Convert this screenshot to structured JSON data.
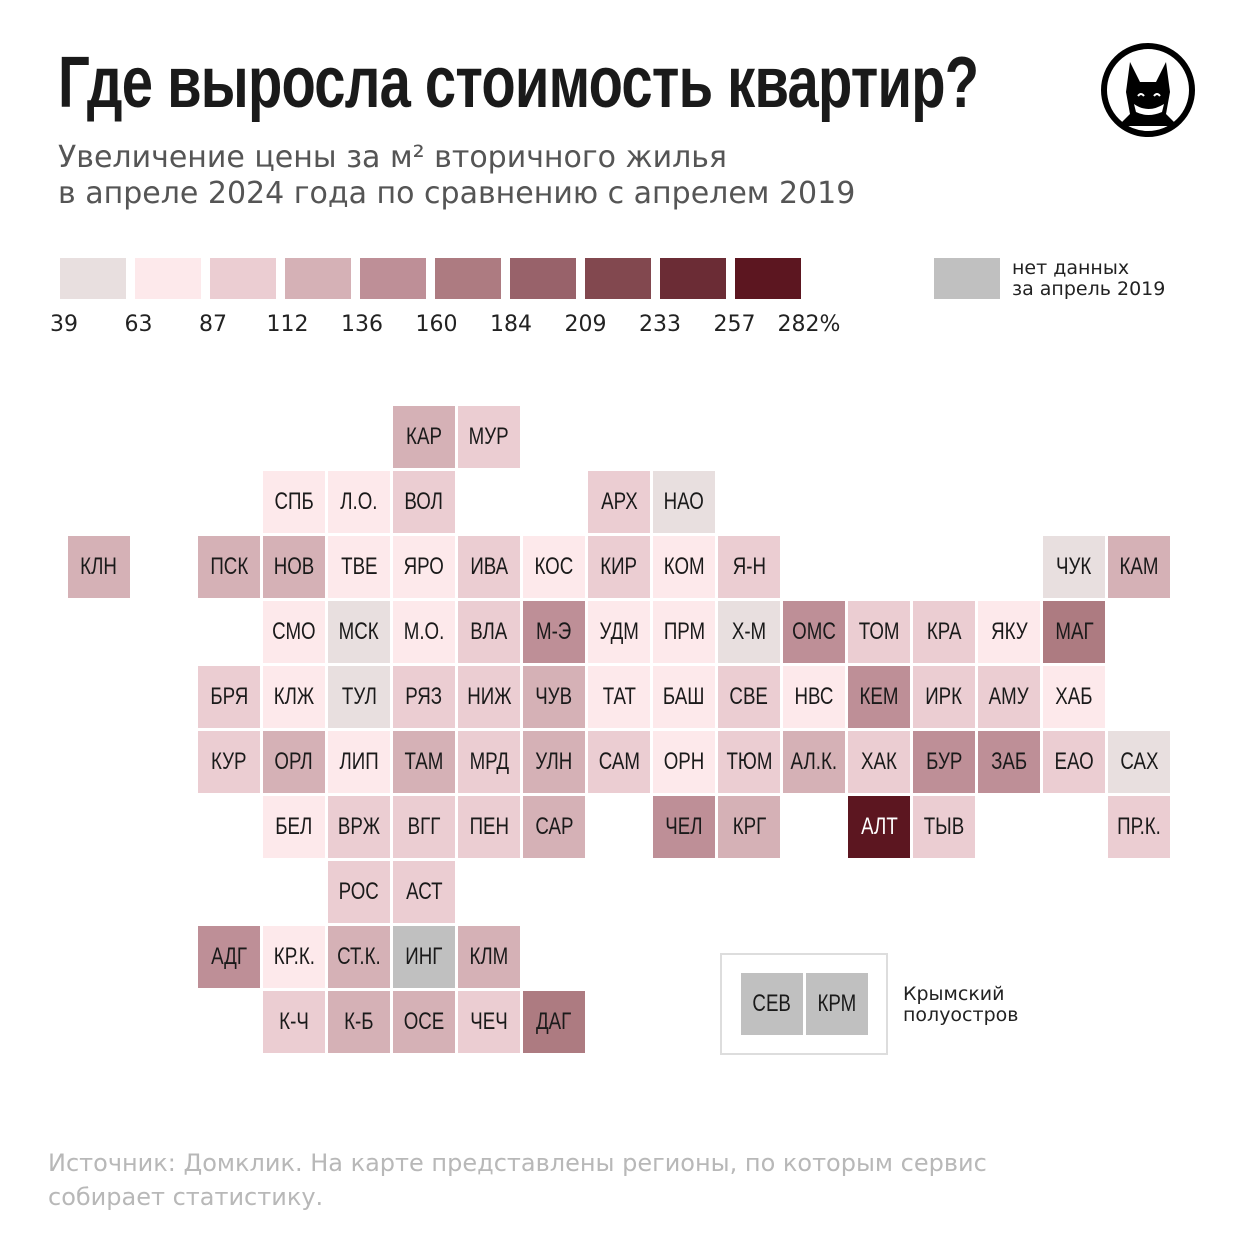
{
  "title": "Где выросла стоимость квартир?",
  "subtitle_line1": "Увеличение цены за м² вторичного жилья",
  "subtitle_line2": "в апреле 2024 года по сравнению с апрелем 2019",
  "logo": "fox-logo",
  "no_data": {
    "line1": "нет данных",
    "line2": "за апрель 2019",
    "color": "#c0c0c0"
  },
  "crimea_label": {
    "line1": "Крымский",
    "line2": "полуостров"
  },
  "source_line1": "Источник: Домклик. На карте представлены регионы, по которым сервис",
  "source_line2": "собирает статистику.",
  "chart_data": {
    "type": "heatmap",
    "subtype": "tile-map",
    "legend": {
      "ticks": [
        "39",
        "63",
        "87",
        "112",
        "136",
        "160",
        "184",
        "209",
        "233",
        "257",
        "282%"
      ],
      "colors": [
        "#e8dfdf",
        "#fde9eb",
        "#ebcdd2",
        "#d5b1b6",
        "#be8f97",
        "#ad7b81",
        "#98626a",
        "#82484f",
        "#6b2c35",
        "#5c1620"
      ]
    },
    "regions": [
      {
        "label": "КАР",
        "row": 0,
        "col": 5,
        "bin": 3
      },
      {
        "label": "МУР",
        "row": 0,
        "col": 6,
        "bin": 2
      },
      {
        "label": "СПБ",
        "row": 1,
        "col": 3,
        "bin": 1
      },
      {
        "label": "Л.О.",
        "row": 1,
        "col": 4,
        "bin": 1
      },
      {
        "label": "ВОЛ",
        "row": 1,
        "col": 5,
        "bin": 2
      },
      {
        "label": "АРХ",
        "row": 1,
        "col": 8,
        "bin": 2
      },
      {
        "label": "НАО",
        "row": 1,
        "col": 9,
        "bin": 0
      },
      {
        "label": "КЛН",
        "row": 2,
        "col": 0,
        "bin": 3
      },
      {
        "label": "ПСК",
        "row": 2,
        "col": 2,
        "bin": 3
      },
      {
        "label": "НОВ",
        "row": 2,
        "col": 3,
        "bin": 3
      },
      {
        "label": "ТВЕ",
        "row": 2,
        "col": 4,
        "bin": 1
      },
      {
        "label": "ЯРО",
        "row": 2,
        "col": 5,
        "bin": 1
      },
      {
        "label": "ИВА",
        "row": 2,
        "col": 6,
        "bin": 2
      },
      {
        "label": "КОС",
        "row": 2,
        "col": 7,
        "bin": 1
      },
      {
        "label": "КИР",
        "row": 2,
        "col": 8,
        "bin": 2
      },
      {
        "label": "КОМ",
        "row": 2,
        "col": 9,
        "bin": 1
      },
      {
        "label": "Я-Н",
        "row": 2,
        "col": 10,
        "bin": 2
      },
      {
        "label": "ЧУК",
        "row": 2,
        "col": 15,
        "bin": 0
      },
      {
        "label": "КАМ",
        "row": 2,
        "col": 16,
        "bin": 3
      },
      {
        "label": "СМО",
        "row": 3,
        "col": 3,
        "bin": 1
      },
      {
        "label": "МСК",
        "row": 3,
        "col": 4,
        "bin": 0
      },
      {
        "label": "М.О.",
        "row": 3,
        "col": 5,
        "bin": 1
      },
      {
        "label": "ВЛА",
        "row": 3,
        "col": 6,
        "bin": 2
      },
      {
        "label": "М-Э",
        "row": 3,
        "col": 7,
        "bin": 4
      },
      {
        "label": "УДМ",
        "row": 3,
        "col": 8,
        "bin": 1
      },
      {
        "label": "ПРМ",
        "row": 3,
        "col": 9,
        "bin": 1
      },
      {
        "label": "Х-М",
        "row": 3,
        "col": 10,
        "bin": 0
      },
      {
        "label": "ОМС",
        "row": 3,
        "col": 11,
        "bin": 4
      },
      {
        "label": "ТОМ",
        "row": 3,
        "col": 12,
        "bin": 2
      },
      {
        "label": "КРА",
        "row": 3,
        "col": 13,
        "bin": 2
      },
      {
        "label": "ЯКУ",
        "row": 3,
        "col": 14,
        "bin": 1
      },
      {
        "label": "МАГ",
        "row": 3,
        "col": 15,
        "bin": 5
      },
      {
        "label": "БРЯ",
        "row": 4,
        "col": 2,
        "bin": 2
      },
      {
        "label": "КЛЖ",
        "row": 4,
        "col": 3,
        "bin": 1
      },
      {
        "label": "ТУЛ",
        "row": 4,
        "col": 4,
        "bin": 0
      },
      {
        "label": "РЯЗ",
        "row": 4,
        "col": 5,
        "bin": 2
      },
      {
        "label": "НИЖ",
        "row": 4,
        "col": 6,
        "bin": 2
      },
      {
        "label": "ЧУВ",
        "row": 4,
        "col": 7,
        "bin": 3
      },
      {
        "label": "ТАТ",
        "row": 4,
        "col": 8,
        "bin": 1
      },
      {
        "label": "БАШ",
        "row": 4,
        "col": 9,
        "bin": 1
      },
      {
        "label": "СВЕ",
        "row": 4,
        "col": 10,
        "bin": 2
      },
      {
        "label": "НВС",
        "row": 4,
        "col": 11,
        "bin": 1
      },
      {
        "label": "КЕМ",
        "row": 4,
        "col": 12,
        "bin": 4
      },
      {
        "label": "ИРК",
        "row": 4,
        "col": 13,
        "bin": 2
      },
      {
        "label": "АМУ",
        "row": 4,
        "col": 14,
        "bin": 2
      },
      {
        "label": "ХАБ",
        "row": 4,
        "col": 15,
        "bin": 1
      },
      {
        "label": "КУР",
        "row": 5,
        "col": 2,
        "bin": 2
      },
      {
        "label": "ОРЛ",
        "row": 5,
        "col": 3,
        "bin": 3
      },
      {
        "label": "ЛИП",
        "row": 5,
        "col": 4,
        "bin": 1
      },
      {
        "label": "ТАМ",
        "row": 5,
        "col": 5,
        "bin": 3
      },
      {
        "label": "МРД",
        "row": 5,
        "col": 6,
        "bin": 2
      },
      {
        "label": "УЛН",
        "row": 5,
        "col": 7,
        "bin": 3
      },
      {
        "label": "САМ",
        "row": 5,
        "col": 8,
        "bin": 2
      },
      {
        "label": "ОРН",
        "row": 5,
        "col": 9,
        "bin": 1
      },
      {
        "label": "ТЮМ",
        "row": 5,
        "col": 10,
        "bin": 2
      },
      {
        "label": "АЛ.К.",
        "row": 5,
        "col": 11,
        "bin": 3
      },
      {
        "label": "ХАК",
        "row": 5,
        "col": 12,
        "bin": 2
      },
      {
        "label": "БУР",
        "row": 5,
        "col": 13,
        "bin": 4
      },
      {
        "label": "ЗАБ",
        "row": 5,
        "col": 14,
        "bin": 4
      },
      {
        "label": "ЕАО",
        "row": 5,
        "col": 15,
        "bin": 2
      },
      {
        "label": "САХ",
        "row": 5,
        "col": 16,
        "bin": 0
      },
      {
        "label": "БЕЛ",
        "row": 6,
        "col": 3,
        "bin": 1
      },
      {
        "label": "ВРЖ",
        "row": 6,
        "col": 4,
        "bin": 2
      },
      {
        "label": "ВГГ",
        "row": 6,
        "col": 5,
        "bin": 2
      },
      {
        "label": "ПЕН",
        "row": 6,
        "col": 6,
        "bin": 2
      },
      {
        "label": "САР",
        "row": 6,
        "col": 7,
        "bin": 3
      },
      {
        "label": "ЧЕЛ",
        "row": 6,
        "col": 9,
        "bin": 4
      },
      {
        "label": "КРГ",
        "row": 6,
        "col": 10,
        "bin": 3
      },
      {
        "label": "АЛТ",
        "row": 6,
        "col": 12,
        "bin": 9
      },
      {
        "label": "ТЫВ",
        "row": 6,
        "col": 13,
        "bin": 2
      },
      {
        "label": "ПР.К.",
        "row": 6,
        "col": 16,
        "bin": 2
      },
      {
        "label": "РОС",
        "row": 7,
        "col": 4,
        "bin": 2
      },
      {
        "label": "АСТ",
        "row": 7,
        "col": 5,
        "bin": 2
      },
      {
        "label": "АДГ",
        "row": 8,
        "col": 2,
        "bin": 4
      },
      {
        "label": "КР.К.",
        "row": 8,
        "col": 3,
        "bin": 1
      },
      {
        "label": "СТ.К.",
        "row": 8,
        "col": 4,
        "bin": 3
      },
      {
        "label": "ИНГ",
        "row": 8,
        "col": 5,
        "bin": null
      },
      {
        "label": "КЛМ",
        "row": 8,
        "col": 6,
        "bin": 3
      },
      {
        "label": "К-Ч",
        "row": 9,
        "col": 3,
        "bin": 2
      },
      {
        "label": "К-Б",
        "row": 9,
        "col": 4,
        "bin": 3
      },
      {
        "label": "ОСЕ",
        "row": 9,
        "col": 5,
        "bin": 3
      },
      {
        "label": "ЧЕЧ",
        "row": 9,
        "col": 6,
        "bin": 2
      },
      {
        "label": "ДАГ",
        "row": 9,
        "col": 7,
        "bin": 5
      }
    ],
    "crimea": [
      {
        "label": "СЕВ",
        "bin": null
      },
      {
        "label": "КРМ",
        "bin": null
      }
    ]
  }
}
